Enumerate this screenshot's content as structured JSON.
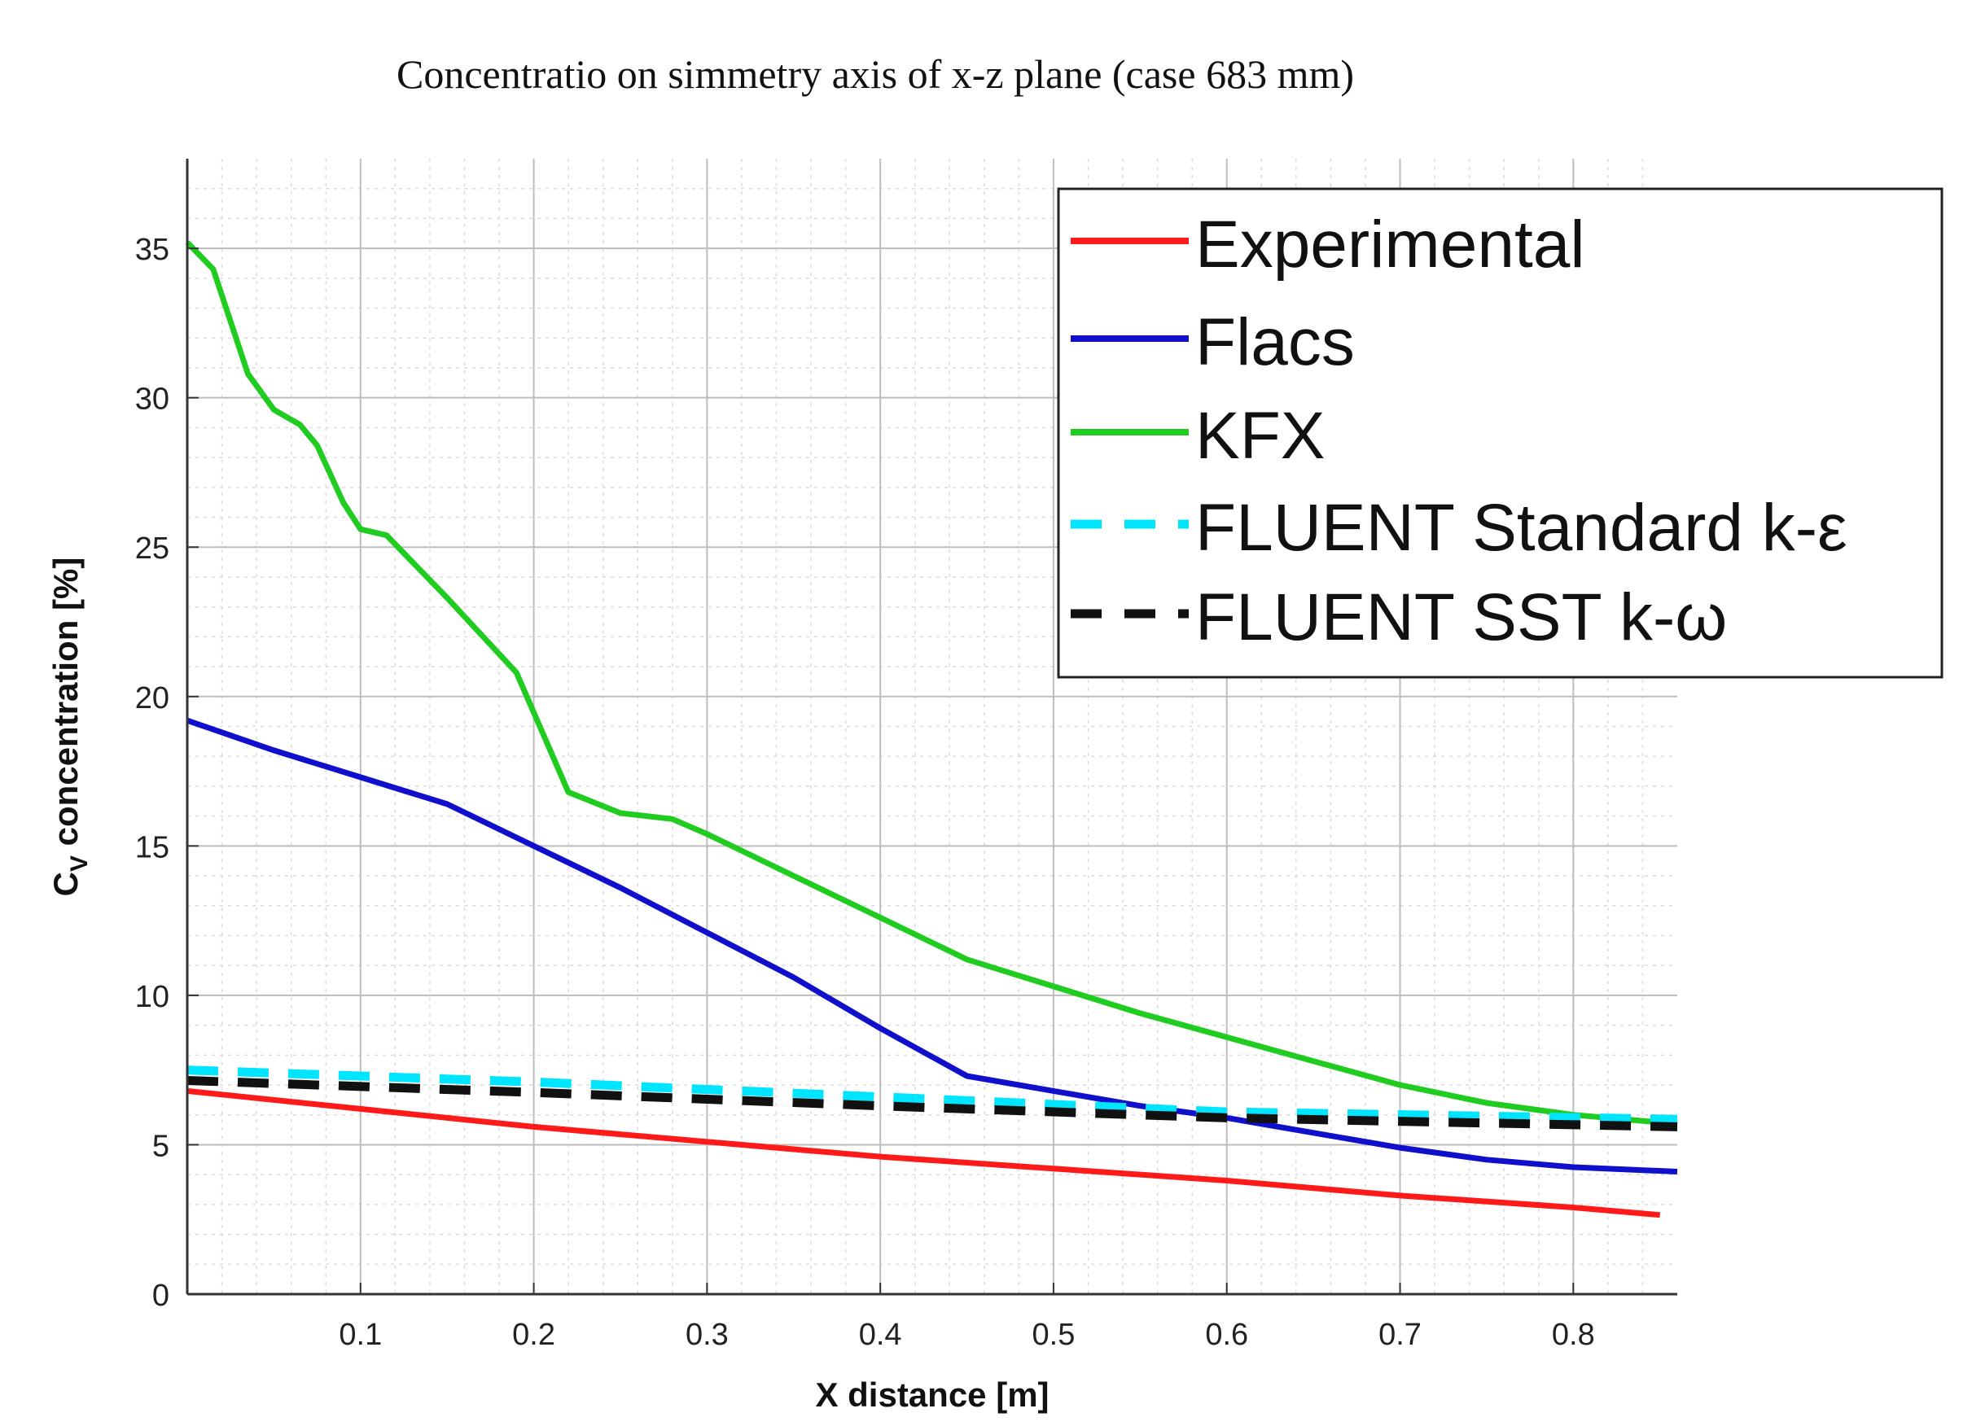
{
  "chart_data": {
    "type": "line",
    "title": "Concentratio on simmetry axis of x-z plane (case 683 mm)",
    "xlabel": "X distance [m]",
    "ylabel_main": "C",
    "ylabel_sub": "V",
    "ylabel_rest": " concentration [%]",
    "xlim": [
      0,
      0.86
    ],
    "ylim": [
      0,
      38
    ],
    "xticks": [
      0.1,
      0.2,
      0.3,
      0.4,
      0.5,
      0.6,
      0.7,
      0.8
    ],
    "xtick_labels": [
      "0.1",
      "0.2",
      "0.3",
      "0.4",
      "0.5",
      "0.6",
      "0.7",
      "0.8"
    ],
    "yticks": [
      0,
      5,
      10,
      15,
      20,
      25,
      30,
      35
    ],
    "ytick_labels": [
      "0",
      "5",
      "10",
      "15",
      "20",
      "25",
      "30",
      "35"
    ],
    "grid": true,
    "legend_position": "top-right",
    "series": [
      {
        "name": "Experimental",
        "color": "#ff1a1a",
        "dash": "solid",
        "x": [
          0.0,
          0.1,
          0.2,
          0.3,
          0.4,
          0.5,
          0.6,
          0.7,
          0.8,
          0.85
        ],
        "y": [
          6.8,
          6.2,
          5.6,
          5.1,
          4.6,
          4.2,
          3.8,
          3.3,
          2.9,
          2.65
        ]
      },
      {
        "name": "Flacs",
        "color": "#1010cc",
        "dash": "solid",
        "x": [
          0.0,
          0.05,
          0.1,
          0.15,
          0.2,
          0.25,
          0.3,
          0.35,
          0.4,
          0.45,
          0.5,
          0.55,
          0.6,
          0.65,
          0.7,
          0.75,
          0.8,
          0.86
        ],
        "y": [
          19.2,
          18.2,
          17.3,
          16.4,
          15.0,
          13.6,
          12.1,
          10.6,
          8.9,
          7.3,
          6.8,
          6.3,
          5.9,
          5.4,
          4.9,
          4.5,
          4.25,
          4.1
        ]
      },
      {
        "name": "KFX",
        "color": "#1fcc1f",
        "dash": "solid",
        "x": [
          0.0,
          0.015,
          0.035,
          0.05,
          0.065,
          0.075,
          0.09,
          0.1,
          0.115,
          0.15,
          0.19,
          0.22,
          0.25,
          0.28,
          0.3,
          0.35,
          0.4,
          0.45,
          0.5,
          0.55,
          0.6,
          0.65,
          0.7,
          0.75,
          0.8,
          0.86
        ],
        "y": [
          35.2,
          34.3,
          30.8,
          29.6,
          29.1,
          28.4,
          26.5,
          25.6,
          25.4,
          23.3,
          20.8,
          16.8,
          16.1,
          15.9,
          15.4,
          14.0,
          12.6,
          11.2,
          10.3,
          9.4,
          8.6,
          7.8,
          7.0,
          6.4,
          6.0,
          5.7
        ]
      },
      {
        "name": "FLUENT Standard k-ε",
        "color": "#00e5ff",
        "dash": "dashed",
        "x": [
          0.0,
          0.2,
          0.4,
          0.6,
          0.86
        ],
        "y": [
          7.5,
          7.1,
          6.6,
          6.1,
          5.85
        ]
      },
      {
        "name": "FLUENT SST k-ω",
        "color": "#111111",
        "dash": "dashed",
        "x": [
          0.0,
          0.2,
          0.4,
          0.6,
          0.86
        ],
        "y": [
          7.15,
          6.75,
          6.3,
          5.9,
          5.6
        ]
      }
    ]
  }
}
